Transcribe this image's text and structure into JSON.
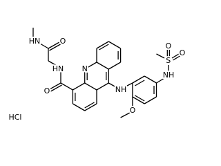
{
  "atoms": {
    "acridine_n": "N",
    "bridge_nh": "NH",
    "amide_o": "O",
    "amide_n": "HN",
    "terminal_o": "O",
    "terminal_n": "HN",
    "methoxy_o": "O",
    "sulfonyl_o1": "O",
    "sulfonyl_o2": "O",
    "sulfonamide_nh": "NH",
    "sulfur": "S"
  },
  "salt": "HCl"
}
